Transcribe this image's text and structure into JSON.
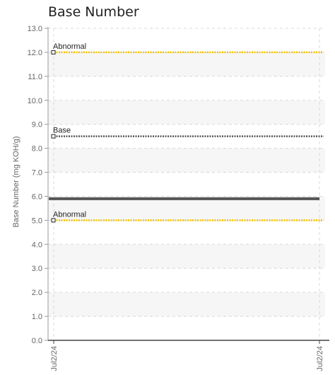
{
  "chart_data": {
    "type": "line",
    "title": "Base Number",
    "ylabel": "Base Number (mg KOH/g)",
    "xlabel": "",
    "ylim": [
      0,
      13
    ],
    "yticks": [
      "0.0",
      "1.0",
      "2.0",
      "3.0",
      "4.0",
      "5.0",
      "6.0",
      "7.0",
      "8.0",
      "9.0",
      "10.0",
      "11.0",
      "12.0",
      "13.0"
    ],
    "x": [
      "Jul2/24",
      "Jul2/24"
    ],
    "grid": true,
    "reference_lines": [
      {
        "label": "Abnormal",
        "value": 12.0,
        "color": "#f2c200",
        "style": "dotted"
      },
      {
        "label": "Base",
        "value": 8.5,
        "color": "#555555",
        "style": "dotted"
      },
      {
        "label": "Abnormal",
        "value": 5.0,
        "color": "#f2c200",
        "style": "dotted"
      }
    ],
    "series": [
      {
        "values": [
          5.9,
          5.9
        ],
        "color": "#555555"
      }
    ]
  }
}
